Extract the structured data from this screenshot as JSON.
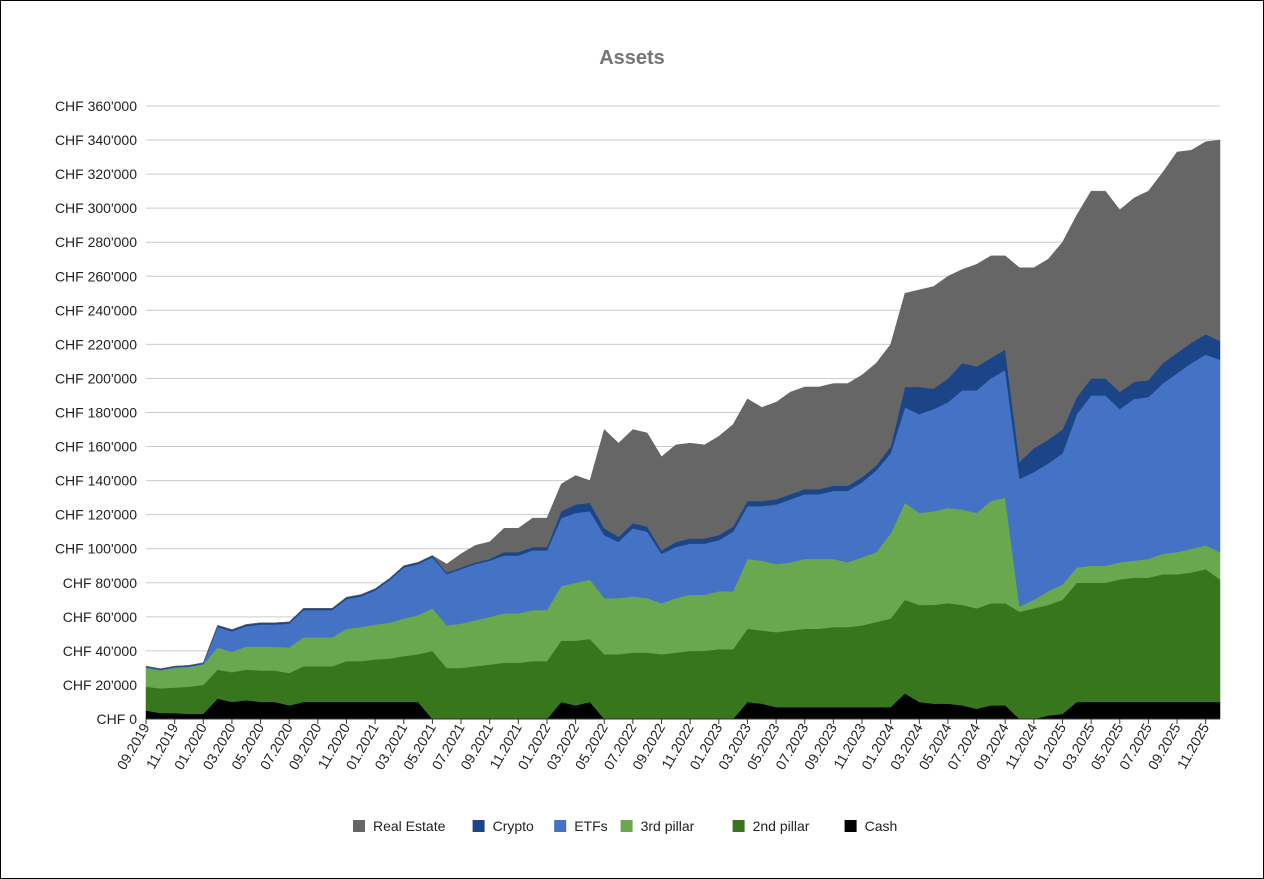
{
  "chart_data": {
    "type": "area",
    "stacked": true,
    "title": "Assets",
    "xlabel": "",
    "ylabel": "",
    "ylim": [
      0,
      360000
    ],
    "y_tick_step": 20000,
    "y_tick_labels": [
      "CHF 0",
      "CHF 20'000",
      "CHF 40'000",
      "CHF 60'000",
      "CHF 80'000",
      "CHF 100'000",
      "CHF 120'000",
      "CHF 140'000",
      "CHF 160'000",
      "CHF 180'000",
      "CHF 200'000",
      "CHF 220'000",
      "CHF 240'000",
      "CHF 260'000",
      "CHF 280'000",
      "CHF 300'000",
      "CHF 320'000",
      "CHF 340'000",
      "CHF 360'000"
    ],
    "grid": true,
    "legend_position": "bottom",
    "x_tick_labels": [
      "09.2019",
      "11.2019",
      "01.2020",
      "03.2020",
      "05.2020",
      "07.2020",
      "09.2020",
      "11.2020",
      "01.2021",
      "03.2021",
      "05.2021",
      "07.2021",
      "09.2021",
      "11.2021",
      "01.2022",
      "03.2022",
      "05.2022",
      "07.2022",
      "09.2022",
      "11.2022",
      "01.2023",
      "03.2023",
      "05.2023",
      "07.2023",
      "09.2023",
      "11.2023",
      "01.2024",
      "03.2024",
      "05.2024",
      "07.2024",
      "09.2024",
      "11.2024",
      "01.2025",
      "03.2025",
      "05.2025",
      "07.2025",
      "09.2025",
      "11.2025"
    ],
    "x_months": [
      "09.2019",
      "10.2019",
      "11.2019",
      "12.2019",
      "01.2020",
      "02.2020",
      "03.2020",
      "04.2020",
      "05.2020",
      "06.2020",
      "07.2020",
      "08.2020",
      "09.2020",
      "10.2020",
      "11.2020",
      "12.2020",
      "01.2021",
      "02.2021",
      "03.2021",
      "04.2021",
      "05.2021",
      "06.2021",
      "07.2021",
      "08.2021",
      "09.2021",
      "10.2021",
      "11.2021",
      "12.2021",
      "01.2022",
      "02.2022",
      "03.2022",
      "04.2022",
      "05.2022",
      "06.2022",
      "07.2022",
      "08.2022",
      "09.2022",
      "10.2022",
      "11.2022",
      "12.2022",
      "01.2023",
      "02.2023",
      "03.2023",
      "04.2023",
      "05.2023",
      "06.2023",
      "07.2023",
      "08.2023",
      "09.2023",
      "10.2023",
      "11.2023",
      "12.2023",
      "01.2024",
      "02.2024",
      "03.2024",
      "04.2024",
      "05.2024",
      "06.2024",
      "07.2024",
      "08.2024",
      "09.2024",
      "10.2024",
      "11.2024",
      "12.2024",
      "01.2025",
      "02.2025",
      "03.2025",
      "04.2025",
      "05.2025",
      "06.2025",
      "07.2025",
      "08.2025",
      "09.2025",
      "10.2025",
      "11.2025",
      "12.2025"
    ],
    "series": [
      {
        "name": "Cash",
        "color": "#000000",
        "values": [
          5000,
          3500,
          3500,
          3000,
          3000,
          12000,
          10000,
          11000,
          10000,
          10000,
          8000,
          10000,
          10000,
          10000,
          10000,
          10000,
          10000,
          10000,
          10000,
          10000,
          0,
          0,
          0,
          0,
          0,
          0,
          0,
          0,
          0,
          10000,
          8000,
          10000,
          0,
          0,
          0,
          0,
          0,
          0,
          0,
          0,
          0,
          0,
          10000,
          9000,
          7000,
          7000,
          7000,
          7000,
          7000,
          7000,
          7000,
          7000,
          7000,
          15000,
          10000,
          9000,
          9000,
          8000,
          6000,
          8000,
          8000,
          0,
          0,
          2000,
          3000,
          10000,
          10000,
          10000,
          10000,
          10000,
          10000,
          10000,
          10000,
          10000,
          10000,
          10000
        ]
      },
      {
        "name": "2nd pillar",
        "color": "#38761d",
        "values": [
          14000,
          14500,
          15000,
          16000,
          17000,
          17000,
          17500,
          18000,
          18500,
          18500,
          19000,
          21000,
          21000,
          21000,
          24000,
          24000,
          25000,
          25500,
          27000,
          28000,
          40000,
          30000,
          30000,
          31000,
          32000,
          33000,
          33000,
          34000,
          34000,
          36000,
          38000,
          37000,
          38000,
          38000,
          39000,
          39000,
          38000,
          39000,
          40000,
          40000,
          41000,
          41000,
          43000,
          43000,
          44000,
          45000,
          46000,
          46000,
          47000,
          47000,
          48000,
          50000,
          52000,
          55000,
          57000,
          58000,
          59000,
          59000,
          59000,
          60000,
          60000,
          63000,
          65000,
          65000,
          67000,
          70000,
          70000,
          70000,
          72000,
          73000,
          73000,
          75000,
          75000,
          76000,
          78000,
          72000
        ]
      },
      {
        "name": "3rd pillar",
        "color": "#6aa84f",
        "values": [
          11000,
          10500,
          11500,
          11500,
          12000,
          13000,
          12000,
          13500,
          14000,
          14000,
          15000,
          17000,
          17000,
          17000,
          19000,
          20000,
          20500,
          21000,
          22000,
          23000,
          25000,
          25000,
          26000,
          27000,
          28000,
          29000,
          29000,
          30000,
          30000,
          32000,
          34000,
          35000,
          33000,
          33000,
          33000,
          32000,
          30000,
          32000,
          33000,
          33000,
          34000,
          34000,
          41000,
          41000,
          40000,
          40000,
          41000,
          41000,
          40000,
          38000,
          40000,
          41000,
          50000,
          57000,
          54000,
          55000,
          56000,
          56000,
          56000,
          60000,
          62000,
          3000,
          5000,
          8000,
          9000,
          9000,
          10000,
          10000,
          10000,
          10000,
          11000,
          12000,
          13000,
          14000,
          14000,
          16000
        ]
      },
      {
        "name": "ETFs",
        "color": "#4472c4",
        "values": [
          500,
          500,
          500,
          500,
          500,
          12000,
          12000,
          12000,
          13000,
          13000,
          14000,
          16000,
          16000,
          16000,
          17500,
          18000,
          20000,
          25000,
          30000,
          30000,
          30000,
          30000,
          32000,
          33000,
          33000,
          34000,
          34000,
          35000,
          35000,
          40000,
          41000,
          40000,
          37000,
          33000,
          40000,
          39000,
          29000,
          30000,
          30000,
          30000,
          30000,
          35000,
          31000,
          32000,
          35000,
          37000,
          38000,
          38000,
          40000,
          42000,
          44000,
          48000,
          47000,
          56000,
          58000,
          60000,
          62000,
          70000,
          72000,
          72000,
          75000,
          75000,
          75000,
          75000,
          77000,
          90000,
          100000,
          100000,
          90000,
          95000,
          95000,
          100000,
          105000,
          109000,
          112000,
          113000
        ]
      },
      {
        "name": "Crypto",
        "color": "#1c4587",
        "values": [
          500,
          500,
          500,
          500,
          500,
          1000,
          1000,
          1000,
          1000,
          1000,
          1000,
          1000,
          1000,
          1000,
          1000,
          1000,
          1000,
          1000,
          1000,
          1000,
          1000,
          1000,
          1000,
          1000,
          1000,
          2000,
          2000,
          2000,
          2000,
          4000,
          5000,
          5000,
          4000,
          3000,
          3000,
          3000,
          2000,
          3000,
          3000,
          3000,
          3000,
          3000,
          3000,
          3000,
          3000,
          3000,
          3000,
          3000,
          3000,
          3000,
          3000,
          3000,
          4000,
          12000,
          16000,
          12000,
          14000,
          16000,
          14000,
          12000,
          12000,
          10000,
          14000,
          14000,
          14000,
          10000,
          10000,
          10000,
          10000,
          10000,
          10000,
          12000,
          12000,
          12000,
          12000,
          11000
        ]
      },
      {
        "name": "Real Estate",
        "color": "#666666",
        "values": [
          0,
          0,
          0,
          0,
          0,
          0,
          0,
          0,
          0,
          0,
          0,
          0,
          0,
          0,
          0,
          0,
          0,
          0,
          0,
          0,
          0,
          5000,
          8000,
          10000,
          10000,
          14000,
          14000,
          17000,
          17000,
          16000,
          17000,
          13000,
          58000,
          55000,
          55000,
          55000,
          55000,
          57000,
          56000,
          55000,
          58000,
          60000,
          60000,
          55000,
          57000,
          60000,
          60000,
          60000,
          60000,
          60000,
          60000,
          60000,
          60000,
          55000,
          57000,
          60000,
          60000,
          55000,
          60000,
          60000,
          55000,
          114000,
          106000,
          106000,
          110000,
          107000,
          110000,
          110000,
          107000,
          108000,
          111000,
          112000,
          118000,
          113000,
          113000,
          118000
        ]
      }
    ]
  },
  "legend": {
    "items": [
      {
        "label": "Real Estate",
        "color": "#666666"
      },
      {
        "label": "Crypto",
        "color": "#1c4587"
      },
      {
        "label": "ETFs",
        "color": "#4472c4"
      },
      {
        "label": "3rd pillar",
        "color": "#6aa84f"
      },
      {
        "label": "2nd pillar",
        "color": "#38761d"
      },
      {
        "label": "Cash",
        "color": "#000000"
      }
    ]
  }
}
